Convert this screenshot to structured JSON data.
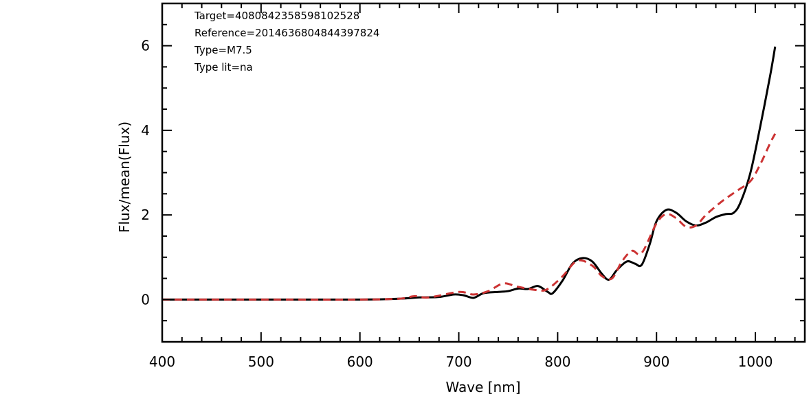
{
  "chart_data": {
    "type": "line",
    "title": "",
    "xlabel": "Wave [nm]",
    "ylabel": "Flux/mean(Flux)",
    "xlim": [
      400,
      1050
    ],
    "ylim": [
      -1,
      7
    ],
    "xticks": [
      400,
      500,
      600,
      700,
      800,
      900,
      1000
    ],
    "yticks": [
      0,
      2,
      4,
      6
    ],
    "grid": false,
    "annotations": [
      "Target=4080842358598102528",
      "Reference=2014636804844397824",
      "Type=M7.5",
      "Type lit=na"
    ],
    "series": [
      {
        "color": "#000000",
        "style": "solid",
        "x": [
          400,
          500,
          600,
          640,
          660,
          680,
          695,
          705,
          715,
          725,
          740,
          750,
          760,
          770,
          780,
          790,
          795,
          805,
          815,
          825,
          835,
          845,
          852,
          860,
          870,
          878,
          885,
          893,
          900,
          910,
          920,
          930,
          940,
          950,
          960,
          970,
          978,
          985,
          995,
          1005,
          1015,
          1020
        ],
        "y": [
          0,
          0,
          0,
          0.02,
          0.05,
          0.06,
          0.12,
          0.1,
          0.04,
          0.15,
          0.18,
          0.2,
          0.26,
          0.25,
          0.32,
          0.18,
          0.15,
          0.45,
          0.85,
          0.98,
          0.9,
          0.6,
          0.47,
          0.7,
          0.9,
          0.85,
          0.82,
          1.3,
          1.85,
          2.12,
          2.05,
          1.85,
          1.75,
          1.82,
          1.95,
          2.02,
          2.05,
          2.3,
          3.0,
          4.1,
          5.3,
          5.98
        ]
      },
      {
        "color": "#cc3333",
        "style": "dashed",
        "x": [
          400,
          500,
          600,
          640,
          655,
          670,
          700,
          715,
          730,
          745,
          760,
          780,
          790,
          805,
          820,
          835,
          845,
          855,
          865,
          875,
          885,
          900,
          910,
          920,
          930,
          940,
          950,
          965,
          980,
          995,
          1005,
          1015,
          1020
        ],
        "y": [
          0,
          0,
          0,
          0.02,
          0.08,
          0.05,
          0.18,
          0.12,
          0.2,
          0.38,
          0.3,
          0.22,
          0.25,
          0.55,
          0.92,
          0.8,
          0.55,
          0.5,
          0.9,
          1.15,
          1.1,
          1.8,
          2.02,
          1.92,
          1.72,
          1.75,
          2.0,
          2.3,
          2.55,
          2.8,
          3.2,
          3.7,
          3.92
        ]
      }
    ]
  }
}
